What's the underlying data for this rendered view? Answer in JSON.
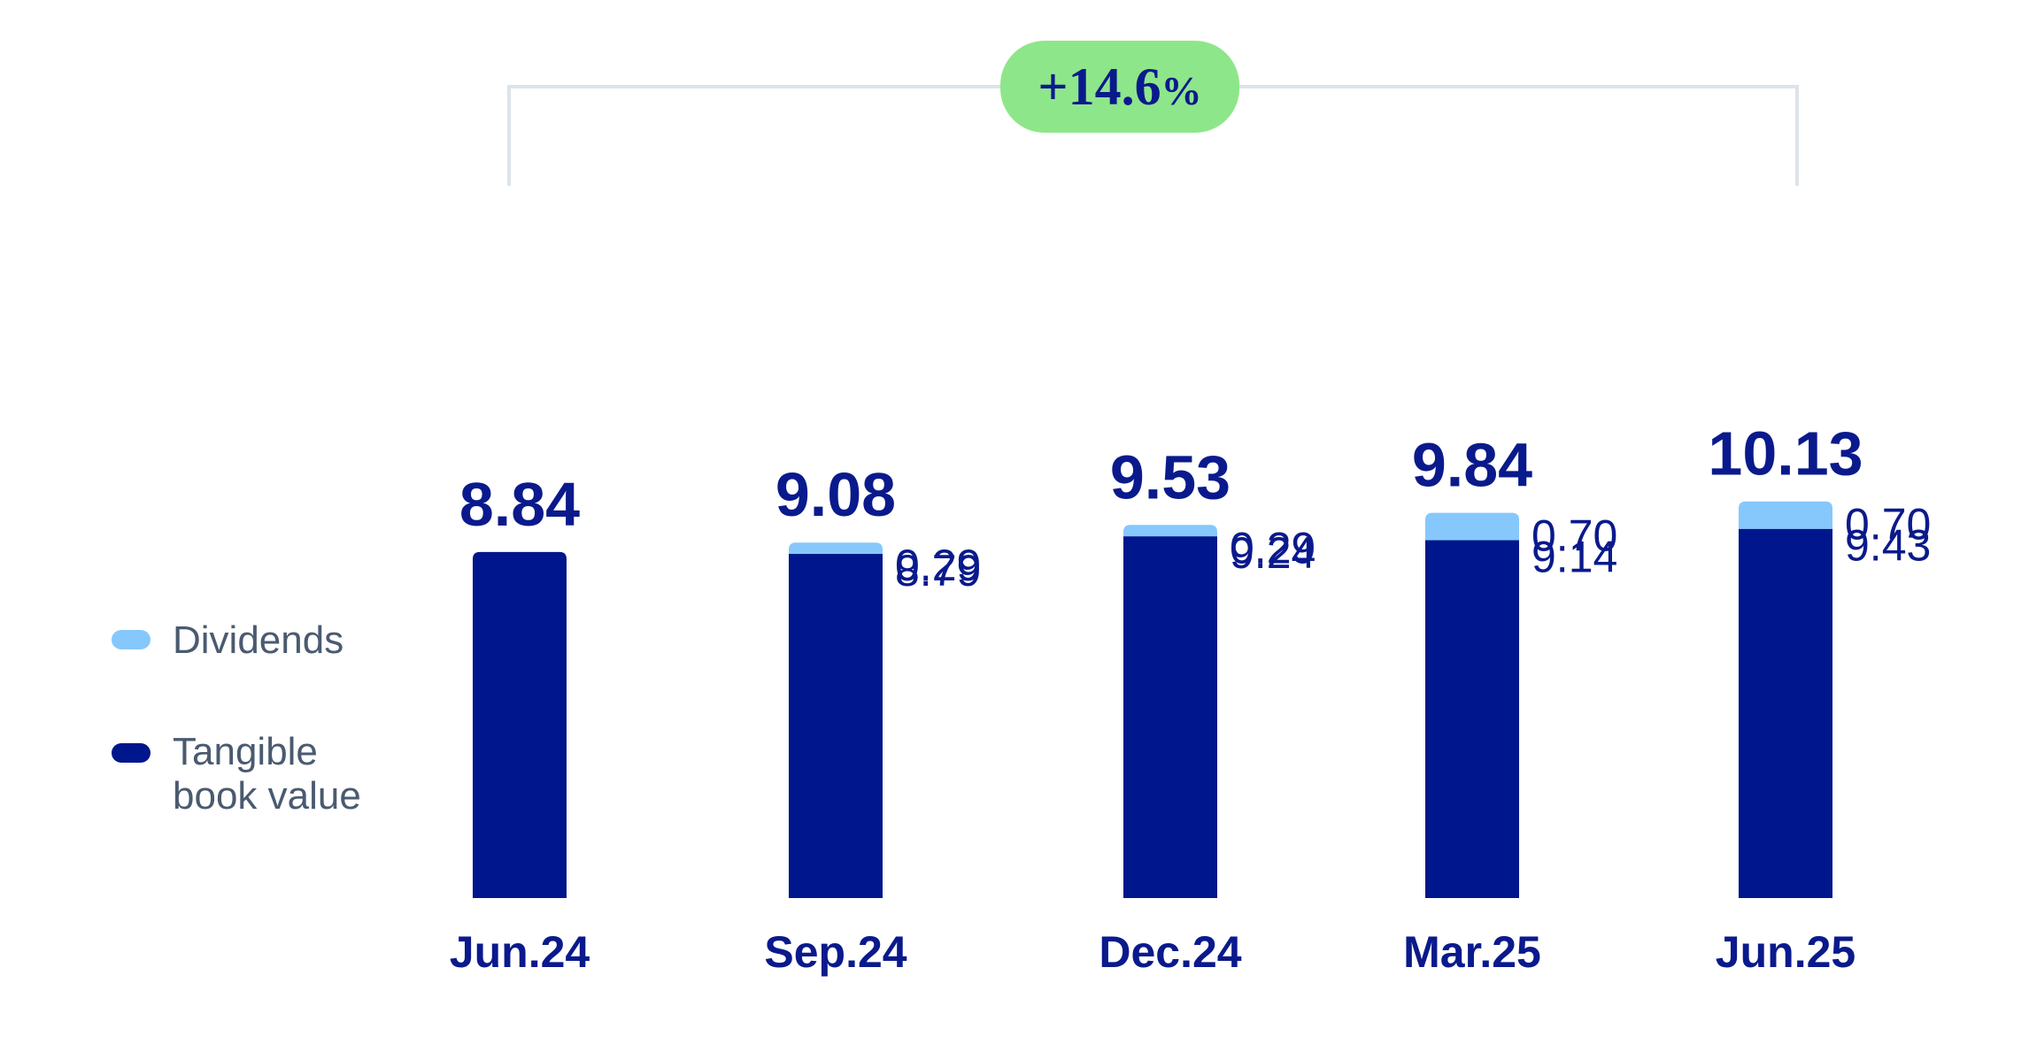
{
  "chart_data": {
    "type": "bar",
    "stacked": true,
    "categories": [
      "Jun.24",
      "Sep.24",
      "Dec.24",
      "Mar.25",
      "Jun.25"
    ],
    "series": [
      {
        "name": "Tangible book value",
        "values": [
          8.84,
          8.79,
          9.24,
          9.14,
          9.43
        ],
        "color": "#00168c"
      },
      {
        "name": "Dividends",
        "values": [
          null,
          0.29,
          0.29,
          0.7,
          0.7
        ],
        "color": "#86c8fc"
      }
    ],
    "totals": [
      "8.84",
      "9.08",
      "9.53",
      "9.84",
      "10.13"
    ],
    "segment_labels": {
      "tangible": [
        "",
        "8.79",
        "9.24",
        "9.14",
        "9.43"
      ],
      "dividends": [
        "",
        "0.29",
        "0.29",
        "0.70",
        "0.70"
      ]
    },
    "legend": [
      {
        "label": "Dividends",
        "color": "#86c8fc"
      },
      {
        "label": "Tangible",
        "label_line2": "book value",
        "color": "#00168c"
      }
    ],
    "legend_position": "left",
    "annotation": {
      "text_main": "+14.6",
      "text_suffix": "%",
      "from": "Jun.24",
      "to": "Jun.25",
      "color": "#8ee68a"
    },
    "ylim": [
      0,
      10.13
    ],
    "grid": false
  }
}
